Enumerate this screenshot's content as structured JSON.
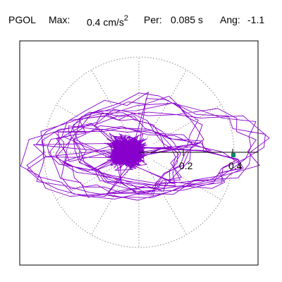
{
  "header": {
    "station": "PGOL",
    "max_label": "Max:",
    "max_value": "0.4 cm/s",
    "max_exp": "2",
    "per_label": "Per:",
    "per_value": "0.085 s",
    "ang_label": "Ang:",
    "ang_value": "-1.1"
  },
  "colors": {
    "trace": "#8800cc",
    "marker": "#008866",
    "grid": "#888888",
    "frame": "#000000"
  },
  "chart_data": {
    "type": "polar-particle-motion",
    "title": "",
    "xlabel": "",
    "ylabel": "",
    "rmax": 0.5,
    "radial_ticks": [
      0.2,
      0.4
    ],
    "tick_labels": [
      "0.2",
      "0.4"
    ],
    "rings": [
      0.5
    ],
    "spokes": 12,
    "max_amplitude": 0.4,
    "angle_deg": -1.1,
    "marker": {
      "r": 0.4,
      "theta_deg": -1.1
    },
    "series": [
      {
        "loops": [
          {
            "a": 0.48,
            "b": 0.175,
            "rot": 5,
            "cx": 0.02,
            "cy": 0.0,
            "n": 4
          },
          {
            "a": 0.38,
            "b": 0.11,
            "rot": -8,
            "cx": 0.01,
            "cy": -0.02,
            "n": 4
          },
          {
            "a": 0.3,
            "b": 0.19,
            "rot": 15,
            "cx": -0.04,
            "cy": 0.03,
            "n": 3
          },
          {
            "a": 0.22,
            "b": 0.14,
            "rot": -25,
            "cx": -0.05,
            "cy": 0.0,
            "n": 4
          }
        ],
        "core": {
          "cx": -0.05,
          "cy": 0.0,
          "sx": 0.06,
          "sy": 0.05,
          "points": 420
        }
      }
    ]
  }
}
